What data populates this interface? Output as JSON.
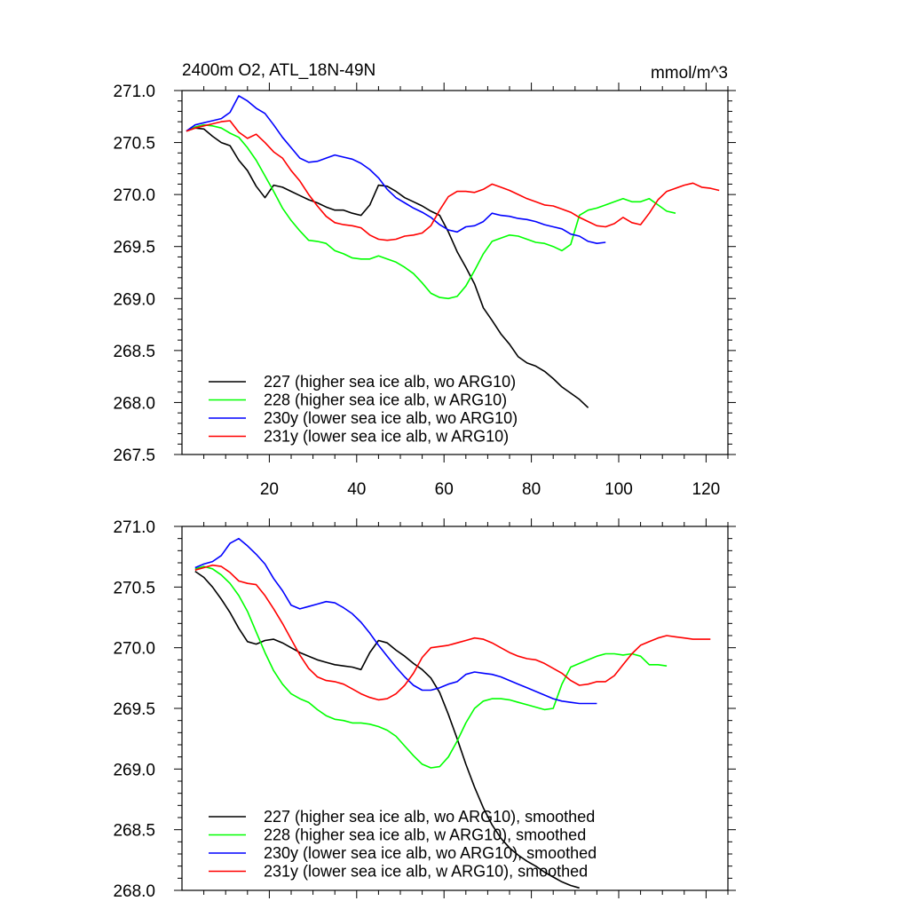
{
  "chart_data": [
    {
      "type": "line",
      "title": "2400m O2, ATL_18N-49N",
      "units": "mmol/m^3",
      "xlabel": "",
      "ylabel": "",
      "xlim": [
        0,
        125
      ],
      "ylim": [
        267.5,
        271.0
      ],
      "xticks": [
        20,
        40,
        60,
        80,
        100,
        120
      ],
      "xtick_labels": [
        "20",
        "40",
        "60",
        "80",
        "100",
        "120"
      ],
      "yticks": [
        267.5,
        268.0,
        268.5,
        269.0,
        269.5,
        270.0,
        270.5,
        271.0
      ],
      "ytick_labels": [
        "267.5",
        "268.0",
        "268.5",
        "269.0",
        "269.5",
        "270.0",
        "270.5",
        "271.0"
      ],
      "legend_position": "bottom-left",
      "series": [
        {
          "name": "227 (higher sea ice alb, wo ARG10)",
          "color": "#000000",
          "x": [
            1,
            3,
            5,
            7,
            9,
            11,
            13,
            15,
            17,
            19,
            21,
            23,
            25,
            27,
            29,
            31,
            33,
            35,
            37,
            39,
            41,
            43,
            45,
            47,
            49,
            51,
            53,
            55,
            57,
            59,
            61,
            63,
            65,
            67,
            69,
            71,
            73,
            75,
            77,
            79,
            81,
            83,
            85,
            87,
            89,
            91,
            93
          ],
          "y": [
            270.61,
            270.64,
            270.63,
            270.56,
            270.5,
            270.47,
            270.33,
            270.23,
            270.08,
            269.97,
            270.09,
            270.07,
            270.03,
            269.99,
            269.95,
            269.92,
            269.88,
            269.85,
            269.85,
            269.82,
            269.8,
            269.9,
            270.09,
            270.08,
            270.03,
            269.97,
            269.93,
            269.89,
            269.84,
            269.8,
            269.64,
            269.45,
            269.3,
            269.14,
            268.91,
            268.79,
            268.66,
            268.56,
            268.44,
            268.38,
            268.35,
            268.3,
            268.23,
            268.15,
            268.09,
            268.03,
            267.95
          ]
        },
        {
          "name": "228 (higher sea ice alb, w ARG10)",
          "color": "#00ff00",
          "x": [
            1,
            3,
            5,
            7,
            9,
            11,
            13,
            15,
            17,
            19,
            21,
            23,
            25,
            27,
            29,
            31,
            33,
            35,
            37,
            39,
            41,
            43,
            45,
            47,
            49,
            51,
            53,
            55,
            57,
            59,
            61,
            63,
            65,
            67,
            69,
            71,
            73,
            75,
            77,
            79,
            81,
            83,
            85,
            87,
            89,
            91,
            93,
            95,
            97,
            99,
            101,
            103,
            105,
            107,
            109,
            111,
            113
          ],
          "y": [
            270.61,
            270.65,
            270.67,
            270.66,
            270.64,
            270.59,
            270.55,
            270.45,
            270.33,
            270.18,
            270.03,
            269.87,
            269.75,
            269.65,
            269.56,
            269.55,
            269.53,
            269.46,
            269.43,
            269.39,
            269.38,
            269.38,
            269.41,
            269.38,
            269.35,
            269.3,
            269.24,
            269.15,
            269.05,
            269.01,
            269.0,
            269.02,
            269.12,
            269.27,
            269.43,
            269.55,
            269.58,
            269.61,
            269.6,
            269.57,
            269.54,
            269.53,
            269.5,
            269.46,
            269.52,
            269.8,
            269.85,
            269.87,
            269.9,
            269.93,
            269.96,
            269.93,
            269.93,
            269.96,
            269.9,
            269.84,
            269.82
          ]
        },
        {
          "name": "230y (lower sea ice alb, wo ARG10)",
          "color": "#0000ff",
          "x": [
            1,
            3,
            5,
            7,
            9,
            11,
            13,
            15,
            17,
            19,
            21,
            23,
            25,
            27,
            29,
            31,
            33,
            35,
            37,
            39,
            41,
            43,
            45,
            47,
            49,
            51,
            53,
            55,
            57,
            59,
            61,
            63,
            65,
            67,
            69,
            71,
            73,
            75,
            77,
            79,
            81,
            83,
            85,
            87,
            89,
            91,
            93,
            95,
            97
          ],
          "y": [
            270.61,
            270.67,
            270.69,
            270.71,
            270.73,
            270.79,
            270.95,
            270.9,
            270.83,
            270.78,
            270.67,
            270.55,
            270.45,
            270.35,
            270.31,
            270.32,
            270.35,
            270.38,
            270.36,
            270.34,
            270.3,
            270.24,
            270.16,
            270.05,
            269.97,
            269.92,
            269.87,
            269.83,
            269.78,
            269.71,
            269.66,
            269.64,
            269.69,
            269.7,
            269.74,
            269.82,
            269.8,
            269.79,
            269.77,
            269.76,
            269.74,
            269.71,
            269.69,
            269.67,
            269.62,
            269.6,
            269.55,
            269.53,
            269.54
          ]
        },
        {
          "name": "231y (lower sea ice alb, w ARG10)",
          "color": "#ff0000",
          "x": [
            1,
            3,
            5,
            7,
            9,
            11,
            13,
            15,
            17,
            19,
            21,
            23,
            25,
            27,
            29,
            31,
            33,
            35,
            37,
            39,
            41,
            43,
            45,
            47,
            49,
            51,
            53,
            55,
            57,
            59,
            61,
            63,
            65,
            67,
            69,
            71,
            73,
            75,
            77,
            79,
            81,
            83,
            85,
            87,
            89,
            91,
            93,
            95,
            97,
            99,
            101,
            103,
            105,
            107,
            109,
            111,
            113,
            115,
            117,
            119,
            121,
            123
          ],
          "y": [
            270.61,
            270.64,
            270.66,
            270.68,
            270.7,
            270.71,
            270.6,
            270.54,
            270.58,
            270.5,
            270.41,
            270.35,
            270.23,
            270.13,
            270.0,
            269.89,
            269.79,
            269.73,
            269.71,
            269.7,
            269.68,
            269.61,
            269.57,
            269.56,
            269.57,
            269.6,
            269.61,
            269.63,
            269.7,
            269.85,
            269.98,
            270.03,
            270.03,
            270.02,
            270.05,
            270.1,
            270.07,
            270.04,
            270.0,
            269.96,
            269.93,
            269.9,
            269.89,
            269.86,
            269.83,
            269.78,
            269.74,
            269.7,
            269.69,
            269.72,
            269.78,
            269.73,
            269.71,
            269.82,
            269.95,
            270.03,
            270.06,
            270.09,
            270.11,
            270.07,
            270.06,
            270.04
          ]
        }
      ]
    },
    {
      "type": "line",
      "title": "",
      "xlabel": "",
      "ylabel": "",
      "xlim": [
        0,
        125
      ],
      "ylim": [
        268.0,
        271.0
      ],
      "xticks": [
        20,
        40,
        60,
        80,
        100,
        120
      ],
      "xtick_labels": [],
      "yticks": [
        268.0,
        268.5,
        269.0,
        269.5,
        270.0,
        270.5,
        271.0
      ],
      "ytick_labels": [
        "268.0",
        "268.5",
        "269.0",
        "269.5",
        "270.0",
        "270.5",
        "271.0"
      ],
      "legend_position": "bottom-left",
      "series": [
        {
          "name": "227 (higher sea ice alb, wo ARG10), smoothed",
          "color": "#000000",
          "x": [
            3,
            5,
            7,
            9,
            11,
            13,
            15,
            17,
            19,
            21,
            23,
            25,
            27,
            29,
            31,
            33,
            35,
            37,
            39,
            41,
            43,
            45,
            47,
            49,
            51,
            53,
            55,
            57,
            59,
            61,
            63,
            65,
            67,
            69,
            71,
            73,
            75,
            77,
            79,
            81,
            83,
            85,
            87,
            89,
            91
          ],
          "y": [
            270.63,
            270.58,
            270.5,
            270.4,
            270.29,
            270.16,
            270.05,
            270.03,
            270.06,
            270.07,
            270.04,
            270.0,
            269.96,
            269.93,
            269.9,
            269.88,
            269.86,
            269.85,
            269.84,
            269.82,
            269.96,
            270.06,
            270.04,
            269.98,
            269.93,
            269.87,
            269.82,
            269.75,
            269.63,
            269.45,
            269.25,
            269.04,
            268.85,
            268.68,
            268.54,
            268.43,
            268.35,
            268.29,
            268.24,
            268.2,
            268.15,
            268.11,
            268.07,
            268.04,
            268.02
          ]
        },
        {
          "name": "228 (higher sea ice alb, w ARG10), smoothed",
          "color": "#00ff00",
          "x": [
            3,
            5,
            7,
            9,
            11,
            13,
            15,
            17,
            19,
            21,
            23,
            25,
            27,
            29,
            31,
            33,
            35,
            37,
            39,
            41,
            43,
            45,
            47,
            49,
            51,
            53,
            55,
            57,
            59,
            61,
            63,
            65,
            67,
            69,
            71,
            73,
            75,
            77,
            79,
            81,
            83,
            85,
            87,
            89,
            91,
            93,
            95,
            97,
            99,
            101,
            103,
            105,
            107,
            109,
            111
          ],
          "y": [
            270.65,
            270.67,
            270.65,
            270.6,
            270.53,
            270.43,
            270.3,
            270.13,
            269.96,
            269.81,
            269.7,
            269.62,
            269.58,
            269.55,
            269.49,
            269.44,
            269.41,
            269.4,
            269.38,
            269.38,
            269.37,
            269.35,
            269.32,
            269.27,
            269.19,
            269.11,
            269.04,
            269.01,
            269.02,
            269.1,
            269.23,
            269.38,
            269.5,
            269.56,
            269.58,
            269.58,
            269.57,
            269.55,
            269.53,
            269.51,
            269.49,
            269.5,
            269.7,
            269.84,
            269.87,
            269.9,
            269.93,
            269.95,
            269.95,
            269.94,
            269.95,
            269.93,
            269.86,
            269.86,
            269.85
          ]
        },
        {
          "name": "230y (lower sea ice alb, wo ARG10), smoothed",
          "color": "#0000ff",
          "x": [
            3,
            5,
            7,
            9,
            11,
            13,
            15,
            17,
            19,
            21,
            23,
            25,
            27,
            29,
            31,
            33,
            35,
            37,
            39,
            41,
            43,
            45,
            47,
            49,
            51,
            53,
            55,
            57,
            59,
            61,
            63,
            65,
            67,
            69,
            71,
            73,
            75,
            77,
            79,
            81,
            83,
            85,
            87,
            89,
            91,
            93,
            95
          ],
          "y": [
            270.66,
            270.69,
            270.71,
            270.76,
            270.86,
            270.9,
            270.84,
            270.77,
            270.69,
            270.57,
            270.47,
            270.35,
            270.32,
            270.34,
            270.36,
            270.38,
            270.37,
            270.33,
            270.28,
            270.21,
            270.12,
            270.02,
            269.93,
            269.84,
            269.76,
            269.69,
            269.65,
            269.65,
            269.67,
            269.7,
            269.72,
            269.78,
            269.8,
            269.79,
            269.78,
            269.76,
            269.73,
            269.7,
            269.67,
            269.64,
            269.61,
            269.58,
            269.56,
            269.55,
            269.54,
            269.54,
            269.54
          ]
        },
        {
          "name": "231y (lower sea ice alb, w ARG10), smoothed",
          "color": "#ff0000",
          "x": [
            3,
            5,
            7,
            9,
            11,
            13,
            15,
            17,
            19,
            21,
            23,
            25,
            27,
            29,
            31,
            33,
            35,
            37,
            39,
            41,
            43,
            45,
            47,
            49,
            51,
            53,
            55,
            57,
            59,
            61,
            63,
            65,
            67,
            69,
            71,
            73,
            75,
            77,
            79,
            81,
            83,
            85,
            87,
            89,
            91,
            93,
            95,
            97,
            99,
            101,
            103,
            105,
            107,
            109,
            111,
            113,
            115,
            117,
            119,
            121
          ],
          "y": [
            270.64,
            270.66,
            270.68,
            270.67,
            270.62,
            270.55,
            270.53,
            270.52,
            270.43,
            270.32,
            270.2,
            270.07,
            269.94,
            269.83,
            269.76,
            269.73,
            269.72,
            269.7,
            269.66,
            269.62,
            269.59,
            269.57,
            269.58,
            269.62,
            269.69,
            269.79,
            269.92,
            270.0,
            270.01,
            270.02,
            270.04,
            270.06,
            270.08,
            270.07,
            270.04,
            270.0,
            269.96,
            269.93,
            269.91,
            269.9,
            269.87,
            269.83,
            269.79,
            269.73,
            269.69,
            269.7,
            269.72,
            269.72,
            269.77,
            269.86,
            269.95,
            270.02,
            270.05,
            270.08,
            270.1,
            270.09,
            270.08,
            270.07,
            270.07,
            270.07
          ]
        }
      ]
    }
  ]
}
